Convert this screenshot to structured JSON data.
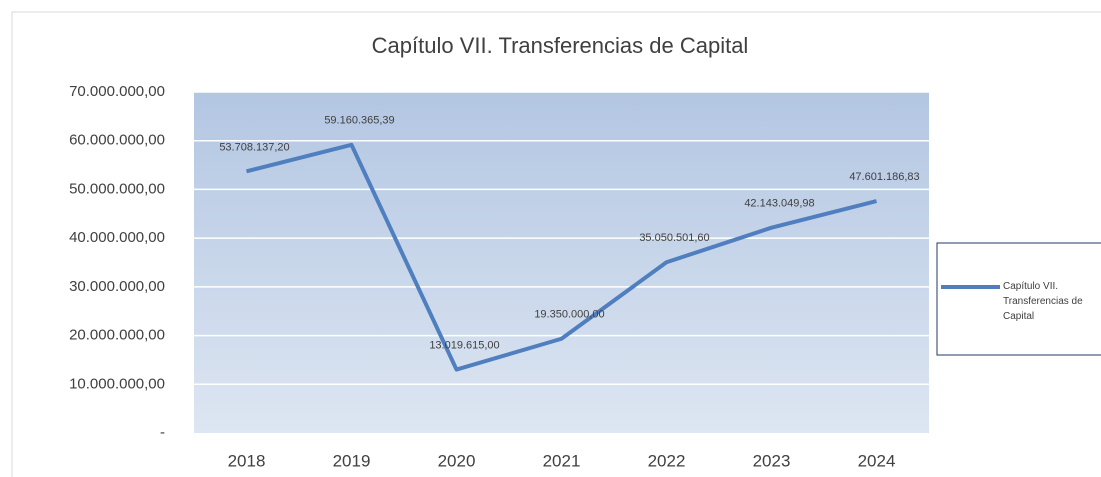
{
  "chart_data": {
    "type": "line",
    "title": "Capítulo VII. Transferencias de Capital",
    "categories": [
      "2018",
      "2019",
      "2020",
      "2021",
      "2022",
      "2023",
      "2024"
    ],
    "series": [
      {
        "name": "Capítulo VII. Transferencias de Capital",
        "color": "#4f7fbf",
        "values": [
          53708137.2,
          59160365.39,
          13019615.0,
          19350000.0,
          35050501.6,
          42143049.98,
          47601186.83
        ],
        "value_labels": [
          "53.708.137,20",
          "59.160.365,39",
          "13.019.615,00",
          "19.350.000,00",
          "35.050.501,60",
          "42.143.049,98",
          "47.601.186,83"
        ]
      }
    ],
    "ylim": [
      0,
      70000000
    ],
    "yticks": [
      {
        "value": 0,
        "label": "-"
      },
      {
        "value": 10000000,
        "label": "10.000.000,00"
      },
      {
        "value": 20000000,
        "label": "20.000.000,00"
      },
      {
        "value": 30000000,
        "label": "30.000.000,00"
      },
      {
        "value": 40000000,
        "label": "40.000.000,00"
      },
      {
        "value": 50000000,
        "label": "50.000.000,00"
      },
      {
        "value": 60000000,
        "label": "60.000.000,00"
      },
      {
        "value": 70000000,
        "label": "70.000.000,00"
      }
    ],
    "grid": true,
    "legend": "right"
  }
}
